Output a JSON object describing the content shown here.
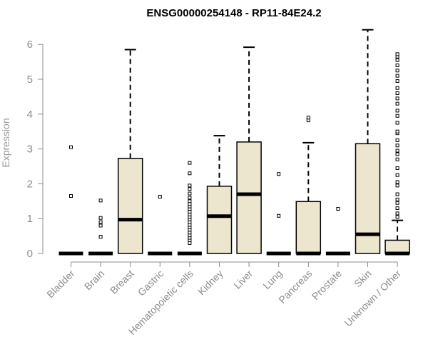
{
  "chart_data": {
    "type": "box",
    "title": "ENSG00000254148 - RP11-84E24.2",
    "ylabel": "Expression",
    "ylim": [
      0,
      6.5
    ],
    "yticks": [
      0,
      1,
      2,
      3,
      4,
      5,
      6
    ],
    "grid": false,
    "colors": {
      "box_fill": "#ede6cf",
      "box_stroke": "#000000",
      "axis": "#8c8c8c"
    },
    "categories": [
      "Bladder",
      "Brain",
      "Breast",
      "Gastric",
      "Hematopoietic cells",
      "Kidney",
      "Liver",
      "Lung",
      "Pancreas",
      "Prostate",
      "Skin",
      "Unknown / Other"
    ],
    "boxes": [
      {
        "category": "Bladder",
        "q1": 0,
        "median": 0,
        "q3": 0,
        "whisker_low": 0,
        "whisker_high": 0,
        "outliers": [
          1.65,
          3.05
        ]
      },
      {
        "category": "Brain",
        "q1": 0,
        "median": 0,
        "q3": 0,
        "whisker_low": 0,
        "whisker_high": 0,
        "outliers": [
          0.48,
          0.8,
          0.9,
          1.02,
          1.52
        ]
      },
      {
        "category": "Breast",
        "q1": 0,
        "median": 0.97,
        "q3": 2.73,
        "whisker_low": 0,
        "whisker_high": 5.85,
        "outliers": []
      },
      {
        "category": "Gastric",
        "q1": 0,
        "median": 0,
        "q3": 0,
        "whisker_low": 0,
        "whisker_high": 0,
        "outliers": [
          1.63
        ]
      },
      {
        "category": "Hematopoietic cells",
        "q1": 0,
        "median": 0,
        "q3": 0,
        "whisker_low": 0,
        "whisker_high": 0,
        "outliers": [
          0.3,
          0.38,
          0.45,
          0.52,
          0.6,
          0.68,
          0.75,
          0.82,
          0.9,
          0.98,
          1.05,
          1.12,
          1.2,
          1.28,
          1.35,
          1.42,
          1.5,
          1.6,
          1.72,
          1.85,
          1.95,
          2.3,
          2.6
        ]
      },
      {
        "category": "Kidney",
        "q1": 0,
        "median": 1.07,
        "q3": 1.93,
        "whisker_low": 0,
        "whisker_high": 3.38,
        "outliers": []
      },
      {
        "category": "Liver",
        "q1": 0,
        "median": 1.7,
        "q3": 3.2,
        "whisker_low": 0,
        "whisker_high": 5.92,
        "outliers": []
      },
      {
        "category": "Lung",
        "q1": 0,
        "median": 0,
        "q3": 0,
        "whisker_low": 0,
        "whisker_high": 0,
        "outliers": [
          1.08,
          2.28
        ]
      },
      {
        "category": "Pancreas",
        "q1": 0,
        "median": 0,
        "q3": 1.49,
        "whisker_low": 0,
        "whisker_high": 3.18,
        "outliers": [
          3.82,
          3.9
        ]
      },
      {
        "category": "Prostate",
        "q1": 0,
        "median": 0,
        "q3": 0,
        "whisker_low": 0,
        "whisker_high": 0,
        "outliers": [
          1.28
        ]
      },
      {
        "category": "Skin",
        "q1": 0,
        "median": 0.55,
        "q3": 3.15,
        "whisker_low": 0,
        "whisker_high": 6.42,
        "outliers": []
      },
      {
        "category": "Unknown / Other",
        "q1": 0,
        "median": 0,
        "q3": 0.38,
        "whisker_low": 0,
        "whisker_high": 0.95,
        "outliers": [
          1.05,
          1.15,
          1.3,
          1.45,
          1.55,
          1.7,
          1.95,
          2.05,
          2.25,
          2.45,
          2.7,
          2.85,
          2.95,
          3.1,
          3.25,
          3.45,
          3.5,
          3.75,
          3.95,
          4.1,
          4.3,
          4.45,
          4.6,
          4.75,
          4.95,
          5.1,
          5.25,
          5.4,
          5.55,
          5.65,
          5.72
        ]
      }
    ]
  }
}
